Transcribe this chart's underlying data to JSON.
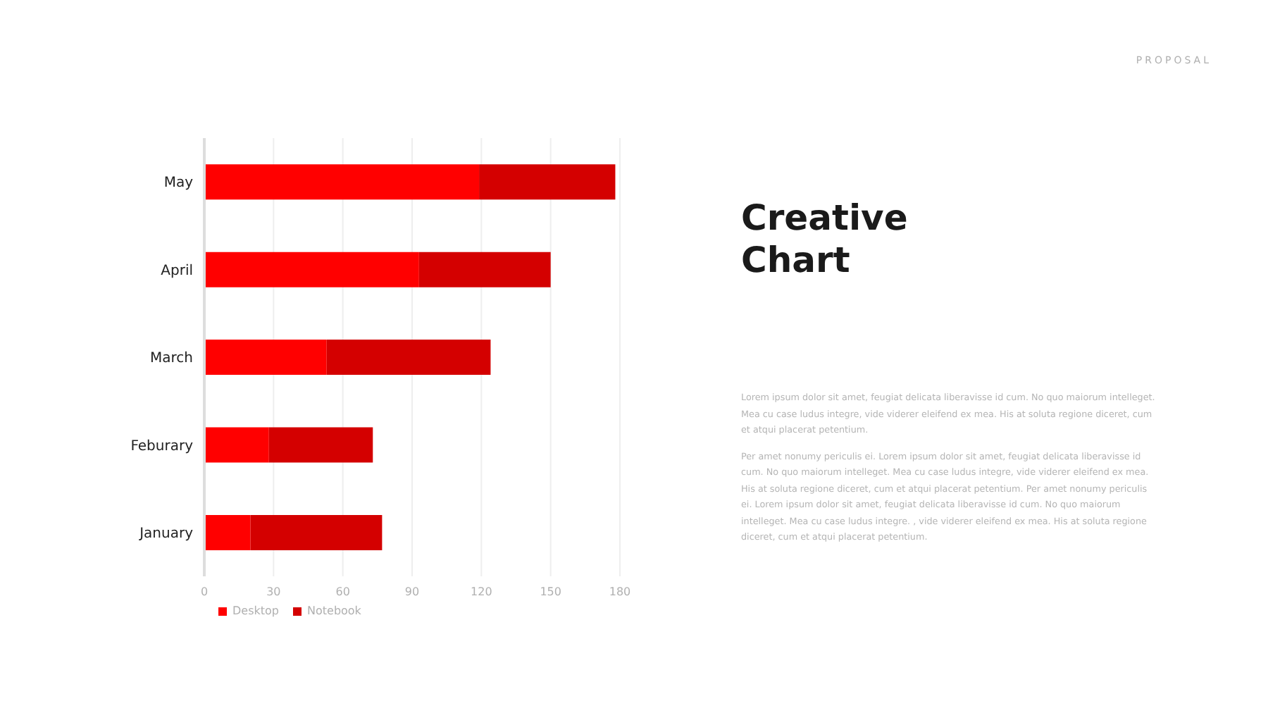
{
  "chart_data": {
    "type": "bar",
    "orientation": "horizontal",
    "stacked": true,
    "title": "Creative Chart",
    "categories": [
      "May",
      "April",
      "March",
      "Feburary",
      "January"
    ],
    "series": [
      {
        "name": "Desktop",
        "color": "#ff0000",
        "values": [
          119,
          93,
          53,
          28,
          20
        ]
      },
      {
        "name": "Notebook",
        "color": "#d40000",
        "values": [
          59,
          57,
          71,
          45,
          57
        ]
      }
    ],
    "xlim": [
      0,
      180
    ],
    "xticks": [
      0,
      30,
      60,
      90,
      120,
      150,
      180
    ],
    "grid": "x",
    "legend": "bottom left",
    "annotations": [
      "PROPOSAL",
      "Lorem ipsum dolor sit amet, feugiat delicata liberavisse id cum. No quo maiorum intelleget. Mea cu case ludus integre, vide viderer eleifend ex mea. His at soluta regione diceret, cum et atqui placerat petentium.",
      "Per amet nonumy periculis ei. Lorem ipsum dolor sit amet, feugiat delicata liberavisse id cum. No quo maiorum intelleget. Mea cu case ludus integre, vide viderer eleifend ex mea. His at soluta regione diceret, cum et atqui placerat petentium. Per amet nonumy periculis ei. Lorem ipsum dolor sit amet, feugiat delicata liberavisse id cum. No quo maiorum intelleget. Mea cu case ludus integre. , vide viderer eleifend ex mea. His at soluta regione diceret, cum et atqui placerat petentium."
    ]
  }
}
